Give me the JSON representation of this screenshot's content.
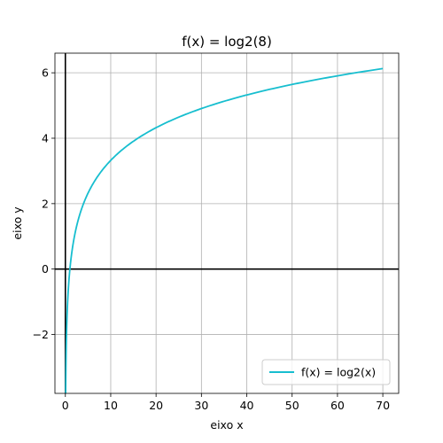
{
  "chart_data": {
    "type": "line",
    "title": "f(x) = log2(8)",
    "xlabel": "eixo x",
    "ylabel": "eixo y",
    "xlim": [
      -2.3,
      73.5
    ],
    "ylim": [
      -3.8,
      6.6
    ],
    "xticks": [
      0,
      10,
      20,
      30,
      40,
      50,
      60,
      70
    ],
    "yticks": [
      -2,
      0,
      2,
      4,
      6
    ],
    "xtick_labels": [
      "0",
      "10",
      "20",
      "30",
      "40",
      "50",
      "60",
      "70"
    ],
    "ytick_labels": [
      "−2",
      "0",
      "2",
      "4",
      "6"
    ],
    "grid": true,
    "legend_position": "lower-right",
    "reference_lines": {
      "x": 0,
      "y": 0,
      "color": "#000000"
    },
    "series": [
      {
        "name": "f(x) = log2(x)",
        "color": "#17becf",
        "function": "log2(x)",
        "x_range": [
          0.07,
          70
        ],
        "x": [
          0.07,
          0.1,
          0.2,
          0.35,
          0.5,
          0.75,
          1,
          1.5,
          2,
          3,
          4,
          5,
          7,
          10,
          15,
          20,
          30,
          40,
          50,
          60,
          70
        ],
        "y": [
          -3.84,
          -3.32,
          -2.32,
          -1.51,
          -1.0,
          -0.42,
          0.0,
          0.58,
          1.0,
          1.58,
          2.0,
          2.32,
          2.81,
          3.32,
          3.91,
          4.32,
          4.91,
          5.32,
          5.64,
          5.91,
          6.13
        ]
      }
    ]
  }
}
